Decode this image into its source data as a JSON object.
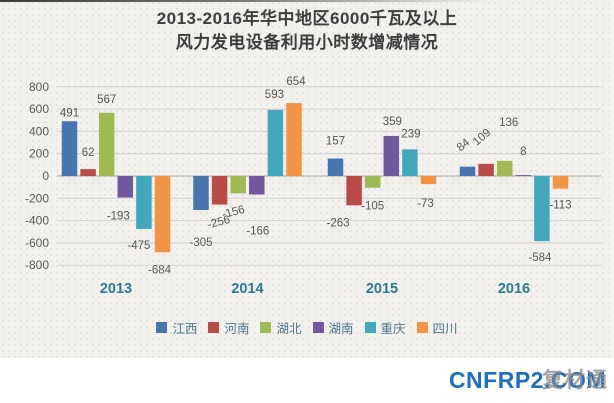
{
  "title": {
    "line1": "2013-2016年华中地区6000千瓦及以上",
    "line2": "风力发电设备利用小时数增减情况"
  },
  "chart_data": {
    "type": "bar",
    "title": "2013-2016年华中地区6000千瓦及以上风力发电设备利用小时数增减情况",
    "categories": [
      "2013",
      "2014",
      "2015",
      "2016"
    ],
    "series": [
      {
        "name": "江西",
        "color": "#4576b0",
        "values": [
          491,
          -305,
          157,
          84
        ],
        "label_offsets": [
          null,
          [
            0,
            22,
            0
          ],
          [
            0,
            -9,
            0
          ],
          [
            -2,
            -14,
            -40
          ]
        ]
      },
      {
        "name": "河南",
        "color": "#bb4b47",
        "values": [
          62,
          -256,
          -263,
          109
        ],
        "label_offsets": [
          [
            0,
            -8,
            0
          ],
          [
            0,
            7,
            -15
          ],
          [
            -16,
            7,
            0
          ],
          [
            -2,
            -19,
            -40
          ]
        ]
      },
      {
        "name": "湖北",
        "color": "#9fb953",
        "values": [
          567,
          -156,
          -105,
          136
        ],
        "label_offsets": [
          [
            0,
            -5,
            0
          ],
          [
            -4,
            8,
            -15
          ],
          [
            0,
            8,
            0
          ],
          [
            4,
            -30,
            0
          ]
        ]
      },
      {
        "name": "湖南",
        "color": "#71579b",
        "values": [
          -193,
          -166,
          359,
          8
        ],
        "label_offsets": [
          [
            -7,
            8,
            0
          ],
          [
            1,
            26,
            0
          ],
          [
            1,
            -6,
            0
          ],
          [
            0,
            -15,
            0
          ]
        ]
      },
      {
        "name": "重庆",
        "color": "#41a7bd",
        "values": [
          -475,
          593,
          239,
          -584
        ],
        "label_offsets": [
          [
            -5,
            6,
            0
          ],
          [
            -1,
            -7,
            0
          ],
          [
            1,
            -7,
            0
          ],
          [
            -2,
            6,
            0
          ]
        ]
      },
      {
        "name": "四川",
        "color": "#f39445",
        "values": [
          -684,
          654,
          -73,
          -113
        ],
        "label_offsets": [
          [
            -3,
            7,
            0
          ],
          [
            2,
            -13,
            0
          ],
          [
            -3,
            9,
            0
          ],
          [
            0,
            6,
            0
          ]
        ]
      }
    ],
    "ylim": [
      -800,
      800
    ],
    "ytick_step": 200,
    "grid": true,
    "legend_position": "bottom",
    "xlabel": "",
    "ylabel": ""
  },
  "style": {
    "tick_label_color": "#595959",
    "value_label_color": "#575650",
    "year_label_color": "#2c7a8f",
    "gridline_color": "#d2d1cb",
    "zero_line_color": "#b3b2ac"
  },
  "footer": {
    "logo_text": "CNFRP2.COM",
    "logo_watermark": "复材通"
  }
}
